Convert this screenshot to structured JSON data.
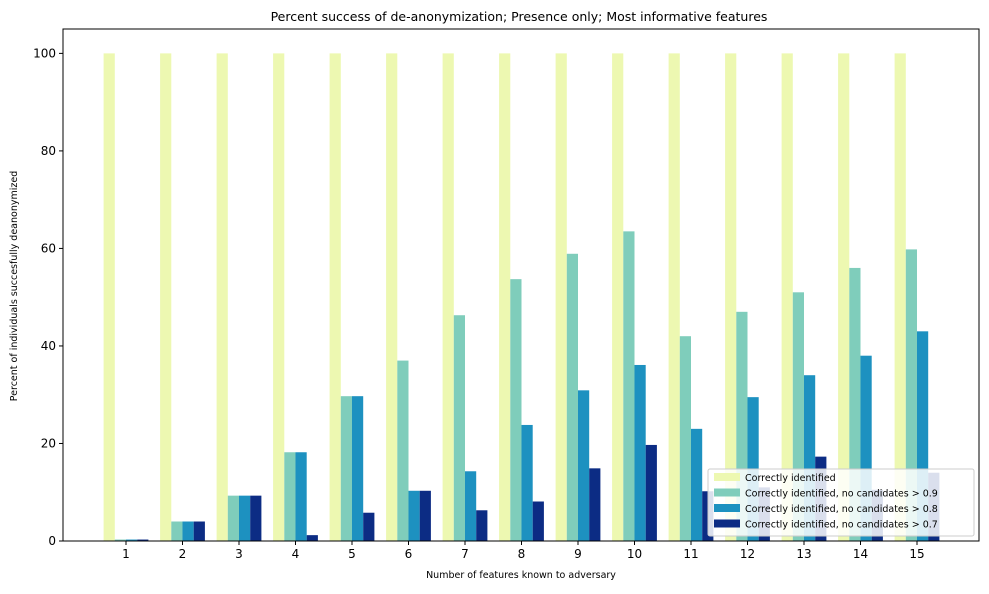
{
  "chart_data": {
    "type": "bar",
    "title": "Percent success of de-anonymization; Presence only; Most informative features",
    "xlabel": "Number of features known to adversary",
    "ylabel": "Percent of individuals succesfully deanonymized",
    "categories": [
      "1",
      "2",
      "3",
      "4",
      "5",
      "6",
      "7",
      "8",
      "9",
      "10",
      "11",
      "12",
      "13",
      "14",
      "15"
    ],
    "ylim": [
      0,
      105
    ],
    "yticks": [
      "0",
      "20",
      "40",
      "60",
      "80",
      "100"
    ],
    "grid": false,
    "legend_position": "lower-right",
    "series": [
      {
        "name": "Correctly identified",
        "color": "#edf8b1",
        "values": [
          100,
          100,
          100,
          100,
          100,
          100,
          100,
          100,
          100,
          100,
          100,
          100,
          100,
          100,
          100
        ]
      },
      {
        "name": "Correctly identified, no candidates > 0.9",
        "color": "#7fcdbb",
        "values": [
          0.3,
          4.0,
          9.3,
          18.2,
          29.7,
          37.0,
          46.3,
          53.7,
          58.9,
          63.5,
          42.0,
          47.0,
          51.0,
          56.0,
          59.8
        ]
      },
      {
        "name": "Correctly identified, no candidates > 0.8",
        "color": "#1d91c0",
        "values": [
          0.3,
          4.0,
          9.3,
          18.2,
          29.7,
          10.3,
          14.3,
          23.8,
          30.9,
          36.1,
          23.0,
          29.5,
          34.0,
          38.0,
          43.0
        ]
      },
      {
        "name": "Correctly identified, no candidates > 0.7",
        "color": "#0c2c84",
        "values": [
          0.3,
          4.0,
          9.3,
          1.2,
          5.8,
          10.3,
          6.3,
          8.1,
          14.9,
          19.7,
          10.2,
          11.0,
          17.3,
          10.5,
          14.0
        ]
      }
    ]
  }
}
